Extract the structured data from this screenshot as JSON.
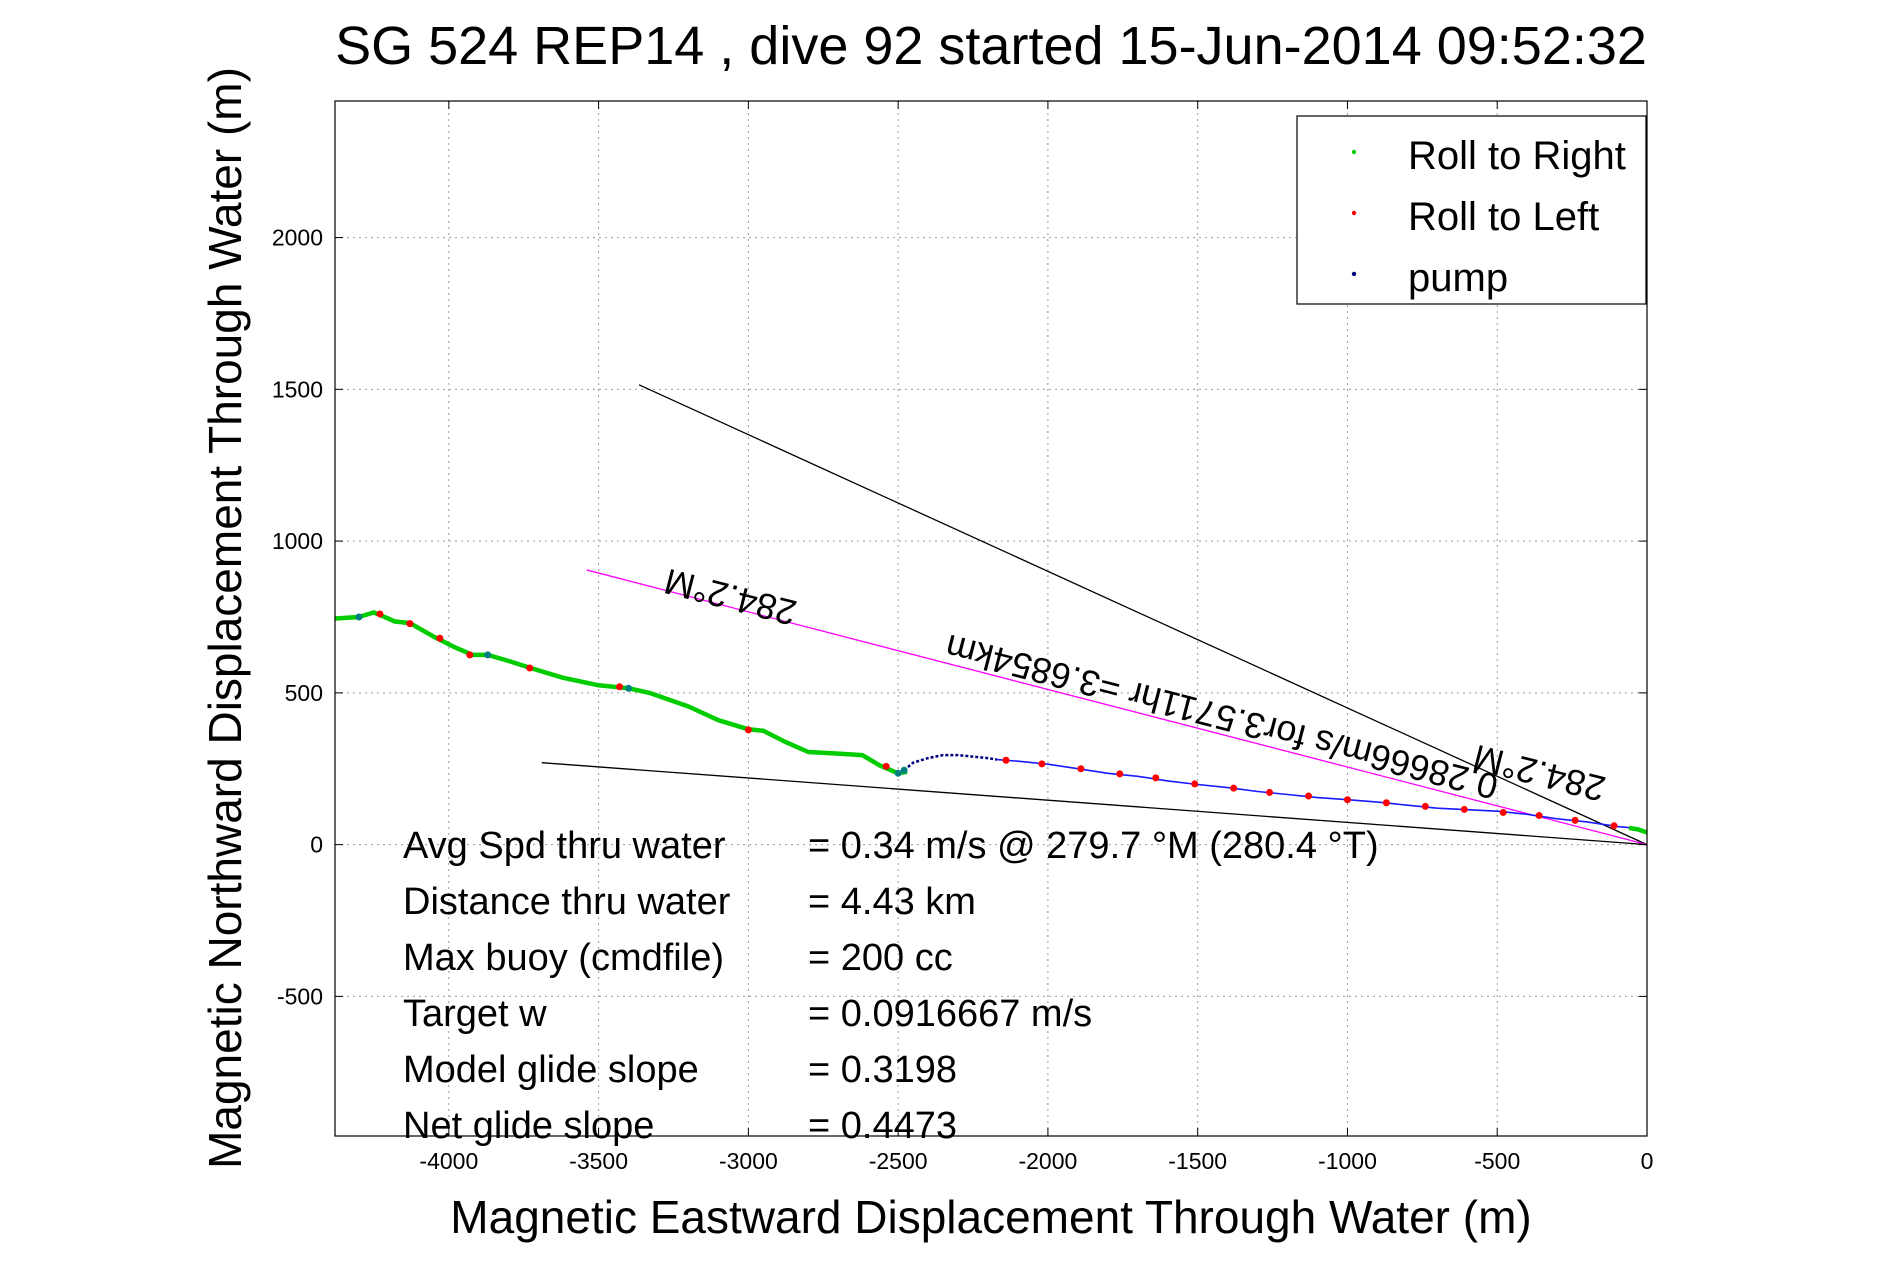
{
  "chart_data": {
    "type": "scatter",
    "title": "SG 524   REP14  , dive 92 started 15-Jun-2014 09:52:32",
    "xlabel": "Magnetic Eastward Displacement Through Water (m)",
    "ylabel": "Magnetic Northward Displacement Through Water (m)",
    "xlim": [
      -4380,
      0
    ],
    "ylim": [
      -960,
      2450
    ],
    "xticks": [
      -4000,
      -3500,
      -3000,
      -2500,
      -2000,
      -1500,
      -1000,
      -500,
      0
    ],
    "yticks": [
      -500,
      0,
      500,
      1000,
      1500,
      2000
    ],
    "grid": true,
    "legend_position": "top-right",
    "legend": [
      {
        "label": "Roll to Right",
        "color": "#00cc00"
      },
      {
        "label": "Roll to Left",
        "color": "#ff0000"
      },
      {
        "label": "pump",
        "color": "#000080"
      }
    ],
    "track": {
      "green": [
        [
          -4380,
          745
        ],
        [
          -4300,
          750
        ],
        [
          -4250,
          765
        ],
        [
          -4180,
          735
        ],
        [
          -4130,
          730
        ],
        [
          -4050,
          685
        ],
        [
          -3980,
          650
        ],
        [
          -3920,
          625
        ],
        [
          -3870,
          625
        ],
        [
          -3800,
          605
        ],
        [
          -3720,
          580
        ],
        [
          -3620,
          550
        ],
        [
          -3500,
          525
        ],
        [
          -3400,
          515
        ],
        [
          -3330,
          500
        ],
        [
          -3200,
          455
        ],
        [
          -3100,
          410
        ],
        [
          -3000,
          380
        ],
        [
          -2950,
          375
        ],
        [
          -2880,
          340
        ],
        [
          -2800,
          305
        ],
        [
          -2700,
          300
        ],
        [
          -2620,
          295
        ],
        [
          -2560,
          260
        ],
        [
          -2500,
          235
        ],
        [
          -2470,
          240
        ]
      ],
      "pump": [
        [
          -2480,
          245
        ],
        [
          -2450,
          270
        ],
        [
          -2400,
          285
        ],
        [
          -2350,
          295
        ],
        [
          -2300,
          295
        ],
        [
          -2250,
          290
        ],
        [
          -2200,
          285
        ],
        [
          -2170,
          280
        ]
      ],
      "blue": [
        [
          -2170,
          280
        ],
        [
          -2100,
          275
        ],
        [
          -2000,
          265
        ],
        [
          -1900,
          250
        ],
        [
          -1800,
          235
        ],
        [
          -1700,
          225
        ],
        [
          -1600,
          210
        ],
        [
          -1500,
          198
        ],
        [
          -1400,
          188
        ],
        [
          -1300,
          175
        ],
        [
          -1200,
          165
        ],
        [
          -1100,
          155
        ],
        [
          -1000,
          148
        ],
        [
          -900,
          140
        ],
        [
          -800,
          130
        ],
        [
          -700,
          120
        ],
        [
          -600,
          115
        ],
        [
          -500,
          110
        ],
        [
          -400,
          100
        ],
        [
          -300,
          85
        ],
        [
          -200,
          75
        ],
        [
          -100,
          60
        ],
        [
          -50,
          55
        ],
        [
          0,
          40
        ]
      ],
      "green_tail": [
        [
          -60,
          55
        ],
        [
          -30,
          50
        ],
        [
          0,
          40
        ]
      ],
      "red_points": [
        [
          -4230,
          760
        ],
        [
          -4130,
          728
        ],
        [
          -4030,
          680
        ],
        [
          -3930,
          625
        ],
        [
          -3730,
          582
        ],
        [
          -3430,
          520
        ],
        [
          -3000,
          378
        ],
        [
          -2540,
          258
        ],
        [
          -2140,
          278
        ],
        [
          -2020,
          266
        ],
        [
          -1890,
          250
        ],
        [
          -1760,
          233
        ],
        [
          -1640,
          220
        ],
        [
          -1510,
          200
        ],
        [
          -1380,
          186
        ],
        [
          -1260,
          172
        ],
        [
          -1130,
          160
        ],
        [
          -1000,
          148
        ],
        [
          -870,
          138
        ],
        [
          -740,
          126
        ],
        [
          -610,
          116
        ],
        [
          -480,
          106
        ],
        [
          -360,
          96
        ],
        [
          -240,
          80
        ],
        [
          -110,
          62
        ]
      ],
      "teal_points": [
        [
          -4300,
          750
        ],
        [
          -3870,
          625
        ],
        [
          -3400,
          515
        ],
        [
          -2500,
          235
        ],
        [
          -2480,
          245
        ]
      ]
    },
    "lines": [
      {
        "x": [
          -3365,
          0
        ],
        "y": [
          1515,
          0
        ],
        "color": "#000000"
      },
      {
        "x": [
          -3540,
          0
        ],
        "y": [
          905,
          0
        ],
        "color": "#ff00ff"
      },
      {
        "x": [
          -3690,
          0
        ],
        "y": [
          270,
          0
        ],
        "color": "#000000"
      }
    ],
    "annotations": [
      {
        "text": "284.2°M",
        "x": -3050,
        "y": 855,
        "rotate": 194.4
      },
      {
        "text": "0.28666m/s for3.5711hr =3.6854km",
        "x": -1410,
        "y": 460,
        "rotate": 194.4
      },
      {
        "text": "284.2°M",
        "x": -350,
        "y": 275,
        "rotate": 194.4
      }
    ],
    "stats": [
      {
        "label": "Avg Spd thru water",
        "value": "=  0.34 m/s @ 279.7 °M (280.4 °T)"
      },
      {
        "label": "Distance thru water",
        "value": "=  4.43 km"
      },
      {
        "label": "Max buoy (cmdfile)",
        "value": "= 200 cc"
      },
      {
        "label": "Target w",
        "value": "= 0.0916667 m/s"
      },
      {
        "label": "Model glide slope",
        "value": "= 0.3198"
      },
      {
        "label": "Net glide slope",
        "value": "= 0.4473"
      }
    ]
  }
}
